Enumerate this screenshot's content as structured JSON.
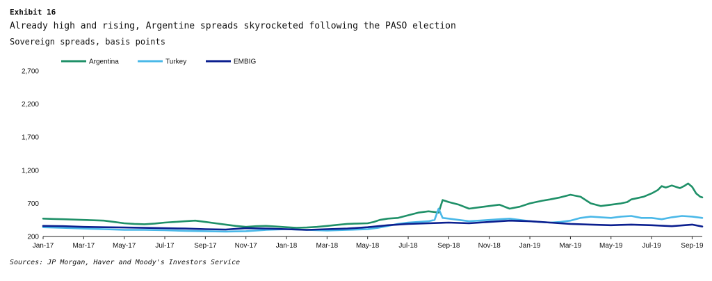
{
  "header": {
    "exhibit": "Exhibit 16",
    "title": "Already high and rising, Argentine spreads skyrocketed following the PASO election",
    "subtitle": "Sovereign spreads, basis points"
  },
  "footer": {
    "source": "Sources: JP Morgan, Haver and Moody's Investors Service"
  },
  "chart_data": {
    "type": "line",
    "title": "Already high and rising, Argentine spreads skyrocketed following the PASO election",
    "subtitle": "Sovereign spreads, basis points",
    "xlabel": "",
    "ylabel": "",
    "ylim": [
      200,
      2700
    ],
    "yticks": [
      200,
      700,
      1200,
      1700,
      2200,
      2700
    ],
    "ytick_labels": [
      "200",
      "700",
      "1,200",
      "1,700",
      "2,200",
      "2,700"
    ],
    "xlim": [
      0,
      32.5
    ],
    "xticks": [
      0,
      2,
      4,
      6,
      8,
      10,
      12,
      14,
      16,
      18,
      20,
      22,
      24,
      26,
      28,
      30,
      32
    ],
    "xtick_labels": [
      "Jan-17",
      "Mar-17",
      "May-17",
      "Jul-17",
      "Sep-17",
      "Nov-17",
      "Jan-18",
      "Mar-18",
      "May-18",
      "Jul-18",
      "Sep-18",
      "Nov-18",
      "Jan-19",
      "Mar-19",
      "May-19",
      "Jul-19",
      "Sep-19"
    ],
    "grid": false,
    "legend_position": "top-left",
    "series": [
      {
        "name": "Argentina",
        "color": "#1f9068",
        "x": [
          0,
          0.5,
          1,
          1.5,
          2,
          2.5,
          3,
          3.5,
          4,
          4.5,
          5,
          5.5,
          6,
          6.5,
          7,
          7.5,
          8,
          8.5,
          9,
          9.5,
          10,
          10.5,
          11,
          11.5,
          12,
          12.5,
          13,
          13.5,
          14,
          14.5,
          15,
          15.5,
          16,
          16.3,
          16.6,
          17,
          17.5,
          18,
          18.5,
          19,
          19.3,
          19.5,
          19.7,
          20,
          20.5,
          21,
          21.5,
          22,
          22.5,
          23,
          23.5,
          24,
          24.3,
          24.6,
          25,
          25.5,
          26,
          26.5,
          27,
          27.5,
          28,
          28.5,
          28.8,
          29,
          29.3,
          29.6,
          30,
          30.3,
          30.5,
          30.7,
          31,
          31.2,
          31.4,
          31.6,
          31.8,
          32,
          32.2,
          32.4,
          32.5
        ],
        "y": [
          470,
          465,
          460,
          455,
          450,
          445,
          440,
          420,
          400,
          390,
          385,
          395,
          410,
          420,
          430,
          440,
          420,
          400,
          380,
          360,
          345,
          355,
          360,
          350,
          340,
          330,
          335,
          345,
          360,
          375,
          390,
          395,
          400,
          420,
          450,
          470,
          480,
          520,
          560,
          580,
          570,
          560,
          750,
          720,
          680,
          620,
          640,
          660,
          680,
          620,
          650,
          700,
          720,
          740,
          760,
          790,
          830,
          800,
          700,
          660,
          680,
          700,
          720,
          760,
          780,
          800,
          850,
          900,
          960,
          940,
          970,
          950,
          930,
          960,
          1000,
          950,
          850,
          800,
          790
        ]
      },
      {
        "name": "Turkey",
        "color": "#4ab8e8",
        "x": [
          0,
          1,
          2,
          3,
          4,
          5,
          6,
          7,
          8,
          9,
          10,
          11,
          12,
          13,
          14,
          15,
          16,
          16.5,
          17,
          17.5,
          18,
          18.5,
          19,
          19.3,
          19.5,
          19.7,
          20,
          20.5,
          21,
          21.5,
          22,
          22.5,
          23,
          23.5,
          24,
          24.5,
          25,
          25.5,
          26,
          26.5,
          27,
          27.5,
          28,
          28.5,
          29,
          29.5,
          30,
          30.5,
          31,
          31.5,
          32,
          32.5
        ],
        "y": [
          340,
          330,
          320,
          310,
          300,
          300,
          295,
          285,
          280,
          275,
          280,
          300,
          310,
          300,
          290,
          300,
          310,
          330,
          360,
          390,
          410,
          420,
          430,
          450,
          620,
          480,
          470,
          450,
          430,
          440,
          450,
          460,
          470,
          450,
          430,
          420,
          410,
          420,
          440,
          480,
          500,
          490,
          480,
          500,
          510,
          480,
          480,
          460,
          490,
          510,
          500,
          480
        ]
      },
      {
        "name": "EMBIG",
        "color": "#0b1f8f",
        "x": [
          0,
          1,
          2,
          3,
          4,
          5,
          6,
          7,
          8,
          9,
          10,
          11,
          12,
          13,
          14,
          15,
          16,
          17,
          18,
          19,
          20,
          21,
          22,
          23,
          24,
          25,
          26,
          27,
          28,
          29,
          30,
          31,
          32,
          32.5
        ],
        "y": [
          360,
          355,
          345,
          340,
          335,
          330,
          325,
          320,
          310,
          305,
          325,
          320,
          310,
          300,
          310,
          320,
          340,
          370,
          390,
          400,
          410,
          400,
          420,
          440,
          430,
          410,
          390,
          380,
          370,
          380,
          370,
          355,
          380,
          350
        ]
      }
    ]
  }
}
